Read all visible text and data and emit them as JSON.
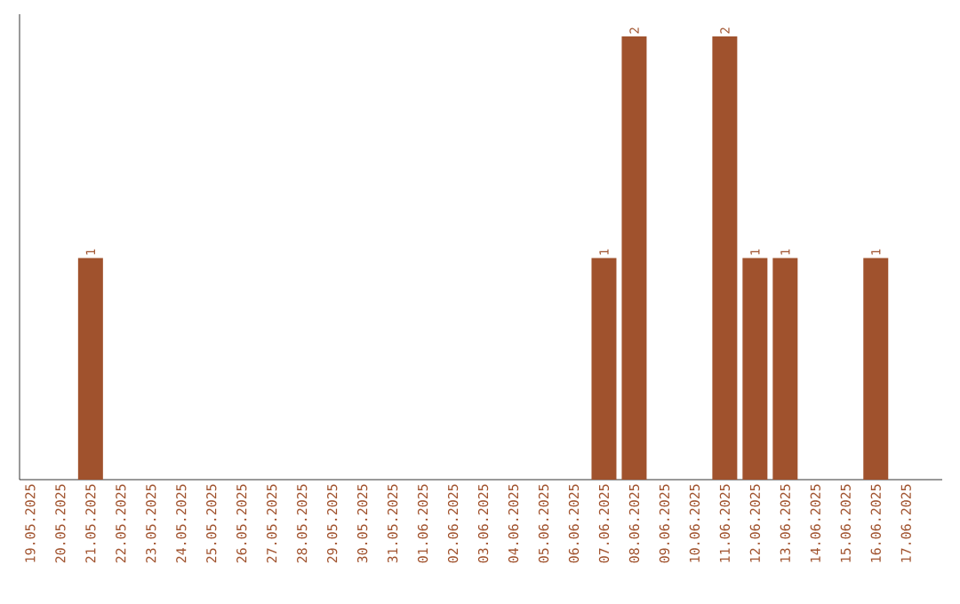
{
  "chart_data": {
    "type": "bar",
    "categories": [
      "19.05.2025",
      "20.05.2025",
      "21.05.2025",
      "22.05.2025",
      "23.05.2025",
      "24.05.2025",
      "25.05.2025",
      "26.05.2025",
      "27.05.2025",
      "28.05.2025",
      "29.05.2025",
      "30.05.2025",
      "31.05.2025",
      "01.06.2025",
      "02.06.2025",
      "03.06.2025",
      "04.06.2025",
      "05.06.2025",
      "06.06.2025",
      "07.06.2025",
      "08.06.2025",
      "09.06.2025",
      "10.06.2025",
      "11.06.2025",
      "12.06.2025",
      "13.06.2025",
      "14.06.2025",
      "15.06.2025",
      "16.06.2025",
      "17.06.2025"
    ],
    "values": [
      0,
      0,
      1,
      0,
      0,
      0,
      0,
      0,
      0,
      0,
      0,
      0,
      0,
      0,
      0,
      0,
      0,
      0,
      0,
      1,
      2,
      0,
      0,
      2,
      1,
      1,
      0,
      0,
      1,
      0
    ],
    "value_labels": [
      null,
      null,
      "1",
      null,
      null,
      null,
      null,
      null,
      null,
      null,
      null,
      null,
      null,
      null,
      null,
      null,
      null,
      null,
      null,
      "1",
      "2",
      null,
      null,
      "2",
      "1",
      "1",
      null,
      null,
      "1",
      null
    ],
    "color": "#a0522d",
    "ylim": [
      0,
      2.1
    ]
  }
}
